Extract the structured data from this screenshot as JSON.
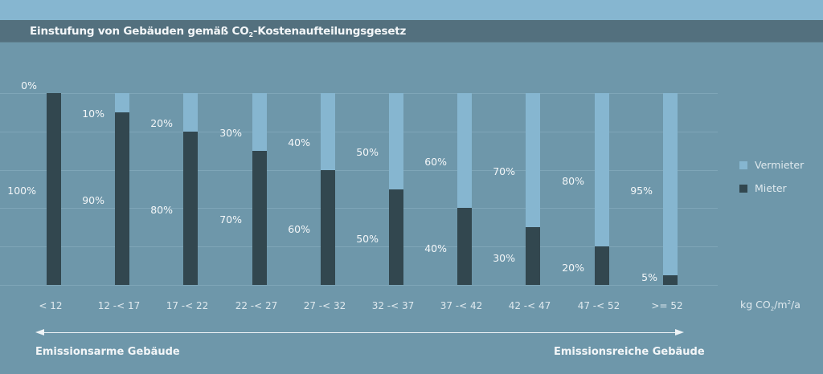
{
  "header": {
    "title_pre": "Einstufung von Gebäuden gemäß CO",
    "title_sub": "2",
    "title_post": "-Kostenaufteilungsgesetz"
  },
  "legend": {
    "items": [
      {
        "label": "Vermieter",
        "color": "#86b6d0"
      },
      {
        "label": "Mieter",
        "color": "#32474f"
      }
    ]
  },
  "axis": {
    "unit_pre": "kg CO",
    "unit_sub": "2",
    "unit_mid": "/m",
    "unit_sup": "2",
    "unit_post": "/a"
  },
  "annotations": {
    "left": "Emissionsarme Gebäude",
    "right": "Emissionsreiche Gebäude"
  },
  "colors": {
    "background": "#6e97aa",
    "title_bar": "#53707e",
    "top_band": "#86b6d0",
    "vermieter": "#86b6d0",
    "mieter": "#32474f"
  },
  "chart_data": {
    "type": "bar",
    "stacked": true,
    "title": "Einstufung von Gebäuden gemäß CO2-Kostenaufteilungsgesetz",
    "xlabel": "kg CO2/m²/a",
    "ylabel": "",
    "ylim": [
      0,
      100
    ],
    "grid": true,
    "legend_position": "right",
    "categories": [
      "< 12",
      "12 -< 17",
      "17 -< 22",
      "22 -< 27",
      "27 -< 32",
      "32 -< 37",
      "37 -< 42",
      "42 -< 47",
      "47 -< 52",
      ">= 52"
    ],
    "series": [
      {
        "name": "Vermieter",
        "values": [
          0,
          10,
          20,
          30,
          40,
          50,
          60,
          70,
          80,
          95
        ],
        "labels": [
          "0%",
          "10%",
          "20%",
          "30%",
          "40%",
          "50%",
          "60%",
          "70%",
          "80%",
          "95%"
        ]
      },
      {
        "name": "Mieter",
        "values": [
          100,
          90,
          80,
          70,
          60,
          50,
          40,
          30,
          20,
          5
        ],
        "labels": [
          "100%",
          "90%",
          "80%",
          "70%",
          "60%",
          "50%",
          "40%",
          "30%",
          "20%",
          "5%"
        ]
      }
    ],
    "annotations": [
      "Emissionsarme Gebäude",
      "Emissionsreiche Gebäude"
    ]
  }
}
